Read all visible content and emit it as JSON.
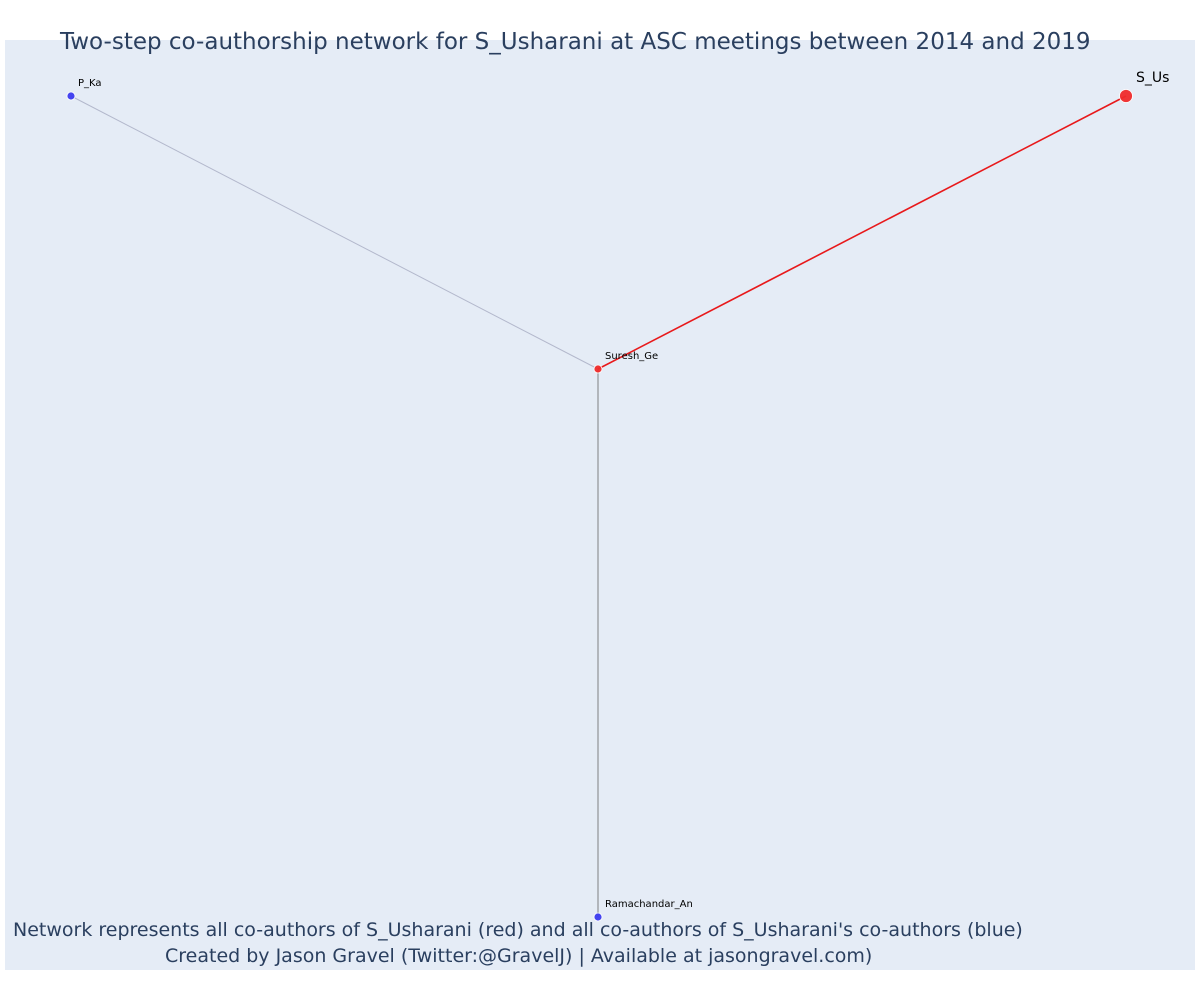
{
  "title": "Two-step co-authorship network for S_Usharani at ASC meetings between 2014 and 2019",
  "caption": {
    "line1": "Network represents all co-authors of S_Usharani (red) and all co-authors of S_Usharani's co-authors (blue)",
    "line2": "Created by Jason Gravel (Twitter:@GravelJ) | Available at jasongravel.com)"
  },
  "colors": {
    "background": "#e5ecf6",
    "direct": "#ef2b2b",
    "indirect": "#3b3bef",
    "direct_edge": "#e8191b",
    "indirect_edge": "#b3b8cc",
    "vertical_edge": "#666666"
  },
  "network": {
    "nodes": [
      {
        "id": "S_Us",
        "label": "S_Us",
        "group": "focal"
      },
      {
        "id": "Suresh_Ge",
        "label": "Suresh_Ge",
        "group": "direct"
      },
      {
        "id": "P_Ka",
        "label": "P_Ka",
        "group": "indirect"
      },
      {
        "id": "Ramachandar_An",
        "label": "Ramachandar_An",
        "group": "indirect"
      }
    ],
    "edges": [
      {
        "source": "S_Us",
        "target": "Suresh_Ge",
        "type": "direct"
      },
      {
        "source": "Suresh_Ge",
        "target": "P_Ka",
        "type": "indirect"
      },
      {
        "source": "Suresh_Ge",
        "target": "Ramachandar_An",
        "type": "vertical"
      }
    ]
  }
}
